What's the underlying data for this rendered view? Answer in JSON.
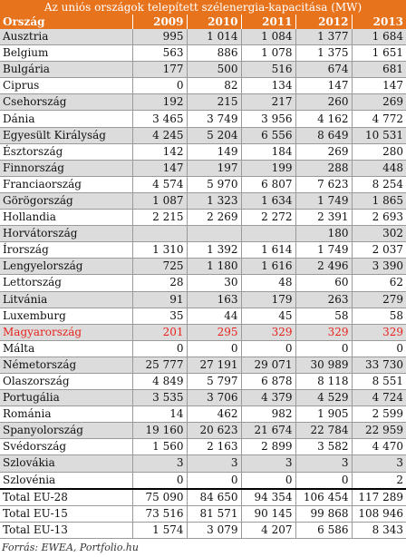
{
  "chart_data": {
    "type": "table",
    "title": "Az uniós országok telepített szélenergia-kapacitása (MW)",
    "header_country": "Ország",
    "years": [
      "2009",
      "2010",
      "2011",
      "2012",
      "2013"
    ],
    "rows": [
      {
        "country": "Ausztria",
        "values": [
          "995",
          "1 014",
          "1 084",
          "1 377",
          "1 684"
        ]
      },
      {
        "country": "Belgium",
        "values": [
          "563",
          "886",
          "1 078",
          "1 375",
          "1 651"
        ]
      },
      {
        "country": "Bulgária",
        "values": [
          "177",
          "500",
          "516",
          "674",
          "681"
        ]
      },
      {
        "country": "Ciprus",
        "values": [
          "0",
          "82",
          "134",
          "147",
          "147"
        ]
      },
      {
        "country": "Csehország",
        "values": [
          "192",
          "215",
          "217",
          "260",
          "269"
        ]
      },
      {
        "country": "Dánia",
        "values": [
          "3 465",
          "3 749",
          "3 956",
          "4 162",
          "4 772"
        ]
      },
      {
        "country": "Egyesült Királyság",
        "values": [
          "4 245",
          "5 204",
          "6 556",
          "8 649",
          "10 531"
        ]
      },
      {
        "country": "Észtország",
        "values": [
          "142",
          "149",
          "184",
          "269",
          "280"
        ]
      },
      {
        "country": "Finnország",
        "values": [
          "147",
          "197",
          "199",
          "288",
          "448"
        ]
      },
      {
        "country": "Franciaország",
        "values": [
          "4 574",
          "5 970",
          "6 807",
          "7 623",
          "8 254"
        ]
      },
      {
        "country": "Görögország",
        "values": [
          "1 087",
          "1 323",
          "1 634",
          "1 749",
          "1 865"
        ]
      },
      {
        "country": "Hollandia",
        "values": [
          "2 215",
          "2 269",
          "2 272",
          "2 391",
          "2 693"
        ]
      },
      {
        "country": "Horvátország",
        "values": [
          "",
          "",
          "",
          "180",
          "302"
        ]
      },
      {
        "country": "Írország",
        "values": [
          "1 310",
          "1 392",
          "1 614",
          "1 749",
          "2 037"
        ]
      },
      {
        "country": "Lengyelország",
        "values": [
          "725",
          "1 180",
          "1 616",
          "2 496",
          "3 390"
        ]
      },
      {
        "country": "Lettország",
        "values": [
          "28",
          "30",
          "48",
          "60",
          "62"
        ]
      },
      {
        "country": "Litvánia",
        "values": [
          "91",
          "163",
          "179",
          "263",
          "279"
        ]
      },
      {
        "country": "Luxemburg",
        "values": [
          "35",
          "44",
          "45",
          "58",
          "58"
        ]
      },
      {
        "country": "Magyarország",
        "values": [
          "201",
          "295",
          "329",
          "329",
          "329"
        ]
      },
      {
        "country": "Málta",
        "values": [
          "0",
          "0",
          "0",
          "0",
          "0"
        ]
      },
      {
        "country": "Németország",
        "values": [
          "25 777",
          "27 191",
          "29 071",
          "30 989",
          "33 730"
        ]
      },
      {
        "country": "Olaszország",
        "values": [
          "4 849",
          "5 797",
          "6 878",
          "8 118",
          "8 551"
        ]
      },
      {
        "country": "Portugália",
        "values": [
          "3 535",
          "3 706",
          "4 379",
          "4 529",
          "4 724"
        ]
      },
      {
        "country": "Románia",
        "values": [
          "14",
          "462",
          "982",
          "1 905",
          "2 599"
        ]
      },
      {
        "country": "Spanyolország",
        "values": [
          "19 160",
          "20 623",
          "21 674",
          "22 784",
          "22 959"
        ]
      },
      {
        "country": "Svédország",
        "values": [
          "1 560",
          "2 163",
          "2 899",
          "3 582",
          "4 470"
        ]
      },
      {
        "country": "Szlovákia",
        "values": [
          "3",
          "3",
          "3",
          "3",
          "3"
        ]
      },
      {
        "country": "Szlovénia",
        "values": [
          "0",
          "0",
          "0",
          "0",
          "2"
        ]
      }
    ],
    "totals": [
      {
        "country": "Total EU-28",
        "values": [
          "75 090",
          "84 650",
          "94 354",
          "106 454",
          "117 289"
        ]
      },
      {
        "country": "Total EU-15",
        "values": [
          "73 516",
          "81 571",
          "90 145",
          "99 868",
          "108 946"
        ]
      },
      {
        "country": "Total EU-13",
        "values": [
          "1 574",
          "3 079",
          "4 207",
          "6 586",
          "8 343"
        ]
      }
    ],
    "highlight_country": "Magyarország",
    "source": "Forrás: EWEA, Portfolio.hu"
  },
  "colors": {
    "header_bg": "#e8731d",
    "header_text": "#ffffff",
    "alt_row_bg": "#dcdcdc",
    "highlight_text": "#e8231d"
  }
}
